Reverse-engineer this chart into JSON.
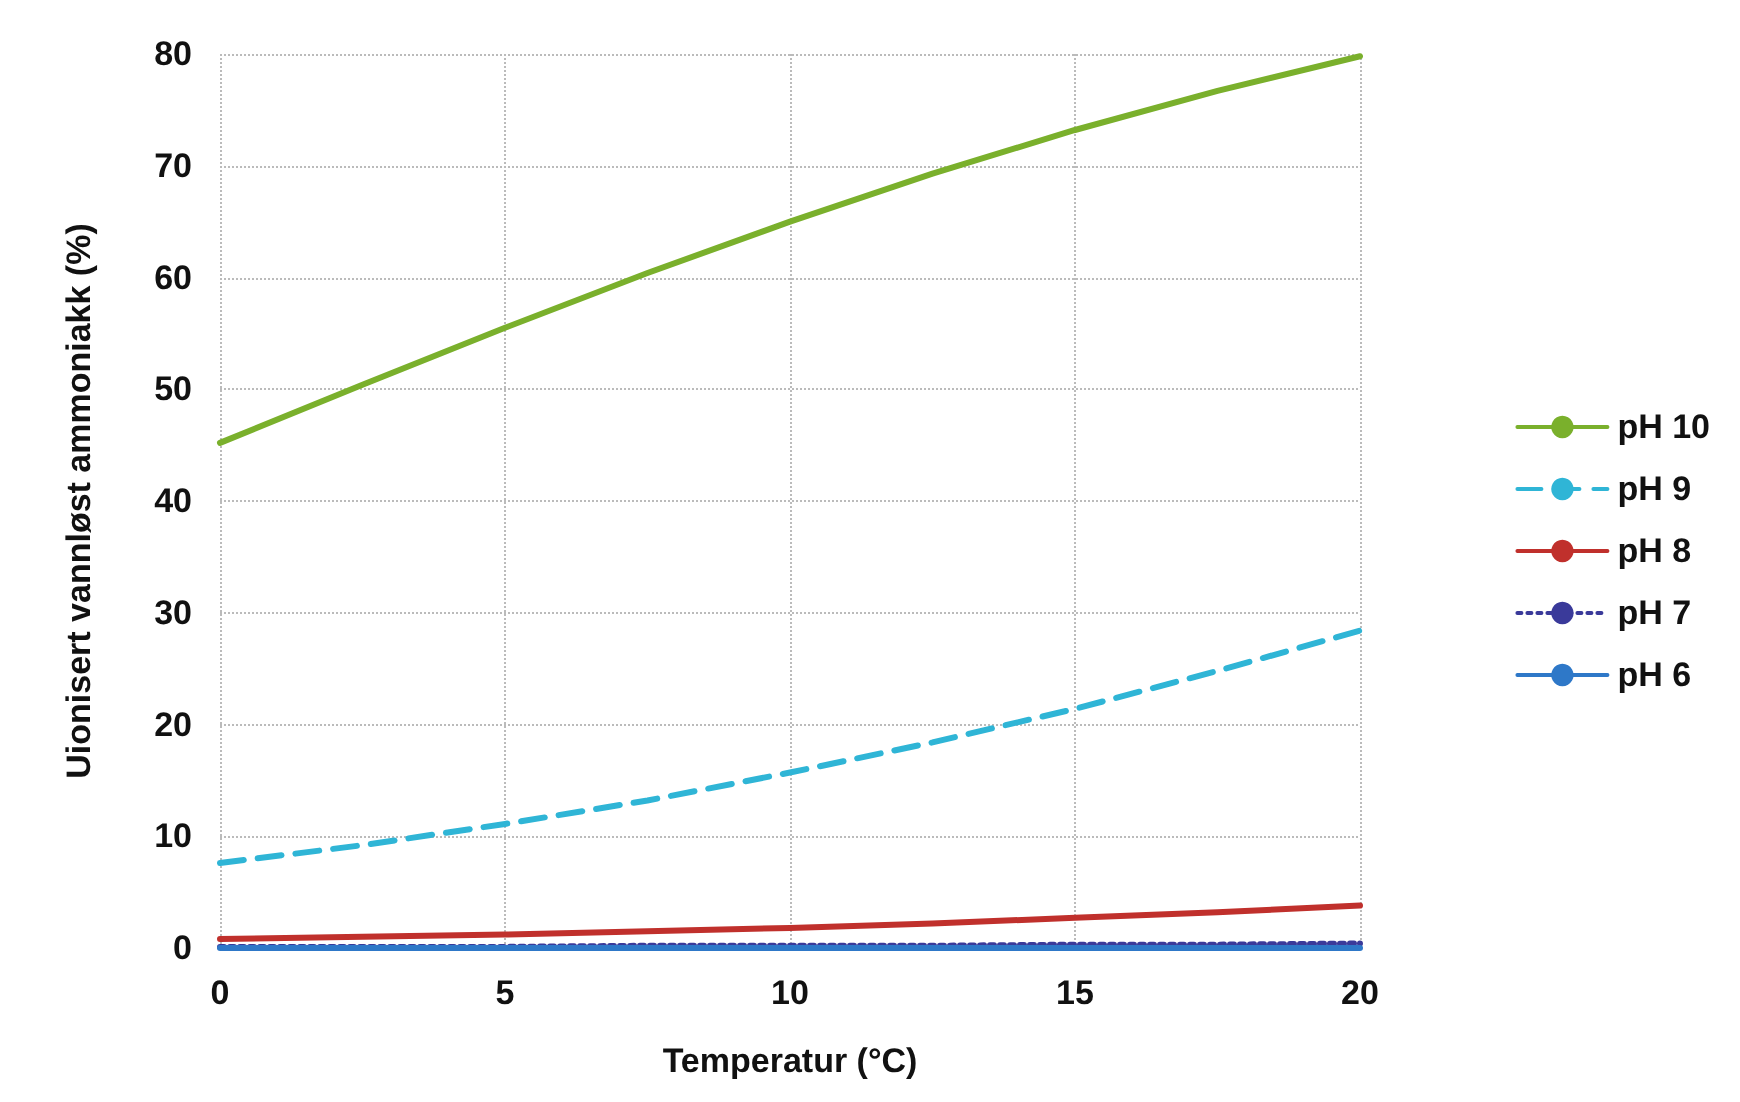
{
  "chart_data": {
    "type": "line",
    "xlabel": "Temperatur (°C)",
    "ylabel": "Uionisert vannløst ammoniakk (%)",
    "x": [
      0,
      2.5,
      5,
      7.5,
      10,
      12.5,
      15,
      17.5,
      20
    ],
    "series": [
      {
        "name": "pH 10",
        "color": "#7ab02c",
        "line_style": "solid",
        "values": [
          45.2,
          50.4,
          55.5,
          60.4,
          65.0,
          69.3,
          73.2,
          76.7,
          79.8
        ]
      },
      {
        "name": "pH 9",
        "color": "#2fb5d6",
        "line_style": "dashed",
        "values": [
          7.6,
          9.2,
          11.1,
          13.2,
          15.7,
          18.4,
          21.4,
          24.8,
          28.4
        ]
      },
      {
        "name": "pH 8",
        "color": "#c0302c",
        "line_style": "solid",
        "values": [
          0.8,
          1.0,
          1.2,
          1.5,
          1.8,
          2.2,
          2.7,
          3.2,
          3.8
        ]
      },
      {
        "name": "pH 7",
        "color": "#3a3a9a",
        "line_style": "dotted",
        "values": [
          0.1,
          0.1,
          0.1,
          0.2,
          0.2,
          0.2,
          0.3,
          0.3,
          0.4
        ]
      },
      {
        "name": "pH 6",
        "color": "#2e78c8",
        "line_style": "solid",
        "values": [
          0,
          0,
          0,
          0,
          0,
          0,
          0,
          0,
          0
        ]
      }
    ],
    "xlim": [
      0,
      20
    ],
    "xticks": [
      0,
      5,
      10,
      15,
      20
    ],
    "ylim": [
      0,
      80
    ],
    "yticks": [
      0,
      10,
      20,
      30,
      40,
      50,
      60,
      70,
      80
    ],
    "grid": true,
    "legend": "right",
    "marker": "none"
  }
}
